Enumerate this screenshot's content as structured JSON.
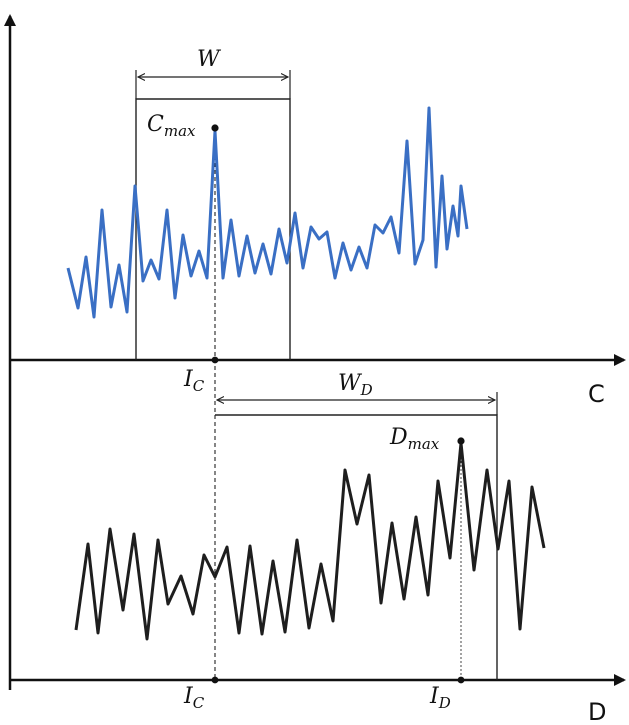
{
  "labels": {
    "c_axis": "C",
    "d_axis": "D",
    "w_main": "W",
    "wd_main": "W",
    "wd_sub": "D",
    "cmax_main": "C",
    "cmax_sub": "max",
    "dmax_main": "D",
    "dmax_sub": "max",
    "ic_top_main": "I",
    "ic_top_sub": "C",
    "ic_bot_main": "I",
    "ic_bot_sub": "C",
    "id_main": "I",
    "id_sub": "D"
  },
  "colors": {
    "signal_c": "#3a6fc4",
    "signal_d": "#1e1e1e",
    "axis": "#111111"
  }
}
